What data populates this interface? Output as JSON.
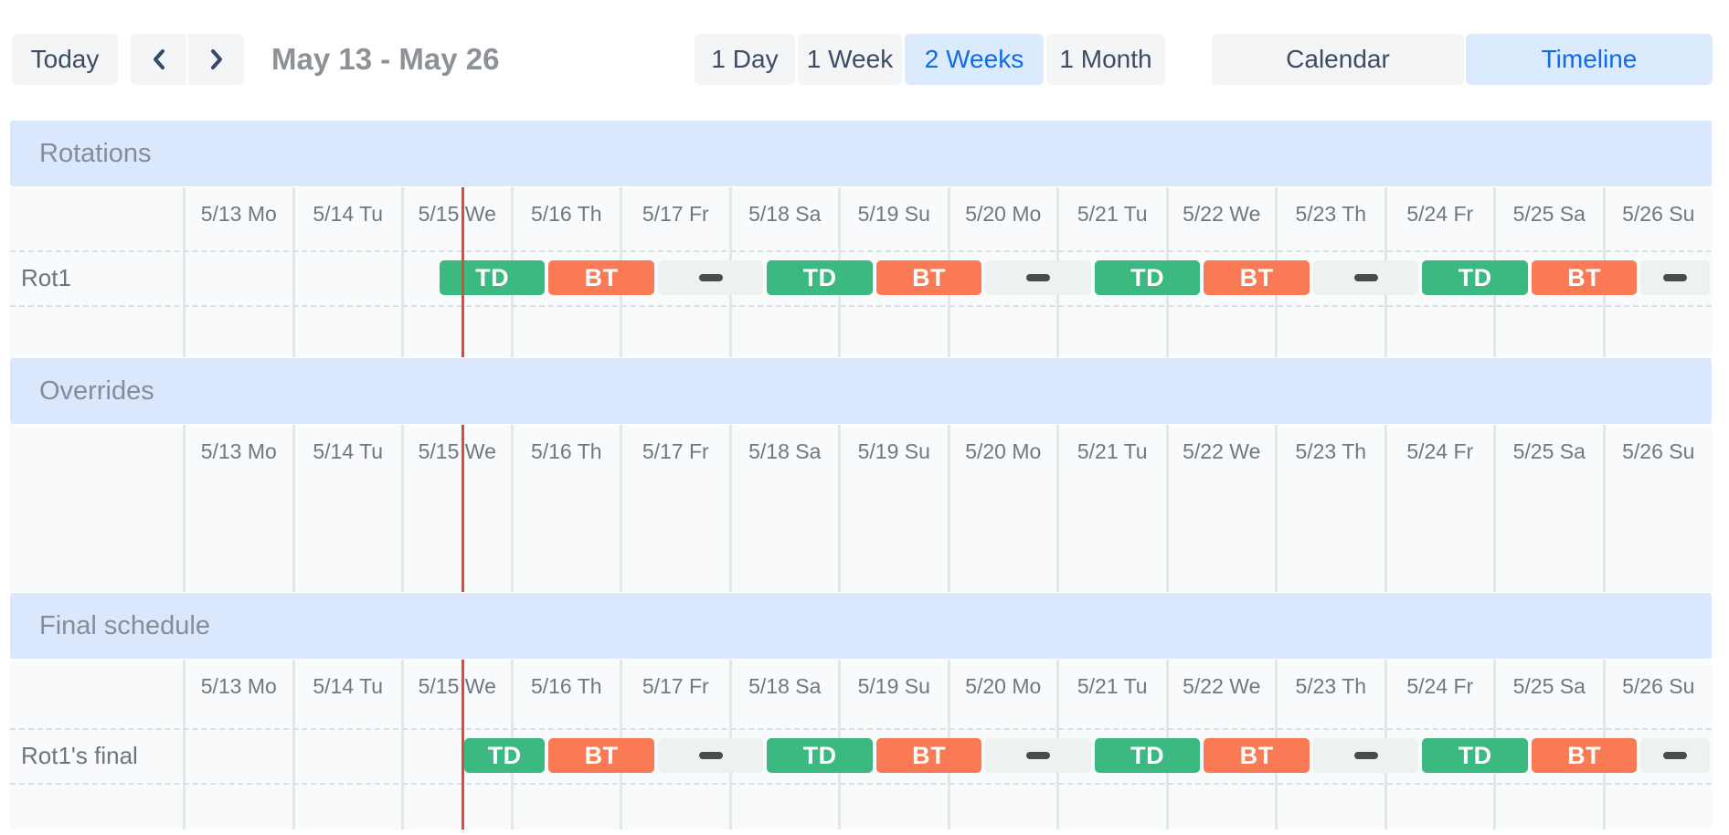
{
  "toolbar": {
    "today_label": "Today",
    "prev_icon": "chevron-left",
    "next_icon": "chevron-right",
    "date_range": "May 13 - May 26",
    "views": [
      {
        "label": "1 Day",
        "selected": false
      },
      {
        "label": "1 Week",
        "selected": false
      },
      {
        "label": "2 Weeks",
        "selected": true
      },
      {
        "label": "1 Month",
        "selected": false
      }
    ],
    "modes": [
      {
        "label": "Calendar",
        "selected": false
      },
      {
        "label": "Timeline",
        "selected": true
      }
    ]
  },
  "timeline": {
    "days": [
      "5/13 Mo",
      "5/14 Tu",
      "5/15 We",
      "5/16 Th",
      "5/17 Fr",
      "5/18 Sa",
      "5/19 Su",
      "5/20 Mo",
      "5/21 Tu",
      "5/22 We",
      "5/23 Th",
      "5/24 Fr",
      "5/25 Sa",
      "5/26 Su"
    ],
    "now_day": 2.56,
    "colors": {
      "shift_td": "#3cb981",
      "shift_bt": "#f97a55",
      "gap_bar": "#ecf2ef",
      "gap_dash": "#494c4e",
      "now_line": "#dc4a38",
      "header_bg": "#dbe7fc"
    },
    "sections": [
      {
        "title": "Rotations",
        "rows": [
          {
            "label": "Rot1",
            "shifts": [
              {
                "kind": "td",
                "label": "TD",
                "start": 2.3333,
                "end": 3.3333
              },
              {
                "kind": "bt",
                "label": "BT",
                "start": 3.3333,
                "end": 4.3333
              },
              {
                "kind": "gap",
                "label": "",
                "start": 4.3333,
                "end": 5.3333
              },
              {
                "kind": "td",
                "label": "TD",
                "start": 5.3333,
                "end": 6.3333
              },
              {
                "kind": "bt",
                "label": "BT",
                "start": 6.3333,
                "end": 7.3333
              },
              {
                "kind": "gap",
                "label": "",
                "start": 7.3333,
                "end": 8.3333
              },
              {
                "kind": "td",
                "label": "TD",
                "start": 8.3333,
                "end": 9.3333
              },
              {
                "kind": "bt",
                "label": "BT",
                "start": 9.3333,
                "end": 10.3333
              },
              {
                "kind": "gap",
                "label": "",
                "start": 10.3333,
                "end": 11.3333
              },
              {
                "kind": "td",
                "label": "TD",
                "start": 11.3333,
                "end": 12.3333
              },
              {
                "kind": "bt",
                "label": "BT",
                "start": 12.3333,
                "end": 13.3333
              },
              {
                "kind": "gap",
                "label": "",
                "start": 13.3333,
                "end": 14.0
              }
            ]
          }
        ]
      },
      {
        "title": "Overrides",
        "rows": []
      },
      {
        "title": "Final schedule",
        "rows": [
          {
            "label": "Rot1's final",
            "shifts": [
              {
                "kind": "td",
                "label": "TD",
                "start": 2.56,
                "end": 3.3333
              },
              {
                "kind": "bt",
                "label": "BT",
                "start": 3.3333,
                "end": 4.3333
              },
              {
                "kind": "gap",
                "label": "",
                "start": 4.3333,
                "end": 5.3333
              },
              {
                "kind": "td",
                "label": "TD",
                "start": 5.3333,
                "end": 6.3333
              },
              {
                "kind": "bt",
                "label": "BT",
                "start": 6.3333,
                "end": 7.3333
              },
              {
                "kind": "gap",
                "label": "",
                "start": 7.3333,
                "end": 8.3333
              },
              {
                "kind": "td",
                "label": "TD",
                "start": 8.3333,
                "end": 9.3333
              },
              {
                "kind": "bt",
                "label": "BT",
                "start": 9.3333,
                "end": 10.3333
              },
              {
                "kind": "gap",
                "label": "",
                "start": 10.3333,
                "end": 11.3333
              },
              {
                "kind": "td",
                "label": "TD",
                "start": 11.3333,
                "end": 12.3333
              },
              {
                "kind": "bt",
                "label": "BT",
                "start": 12.3333,
                "end": 13.3333
              },
              {
                "kind": "gap",
                "label": "",
                "start": 13.3333,
                "end": 14.0
              }
            ]
          }
        ]
      }
    ]
  }
}
